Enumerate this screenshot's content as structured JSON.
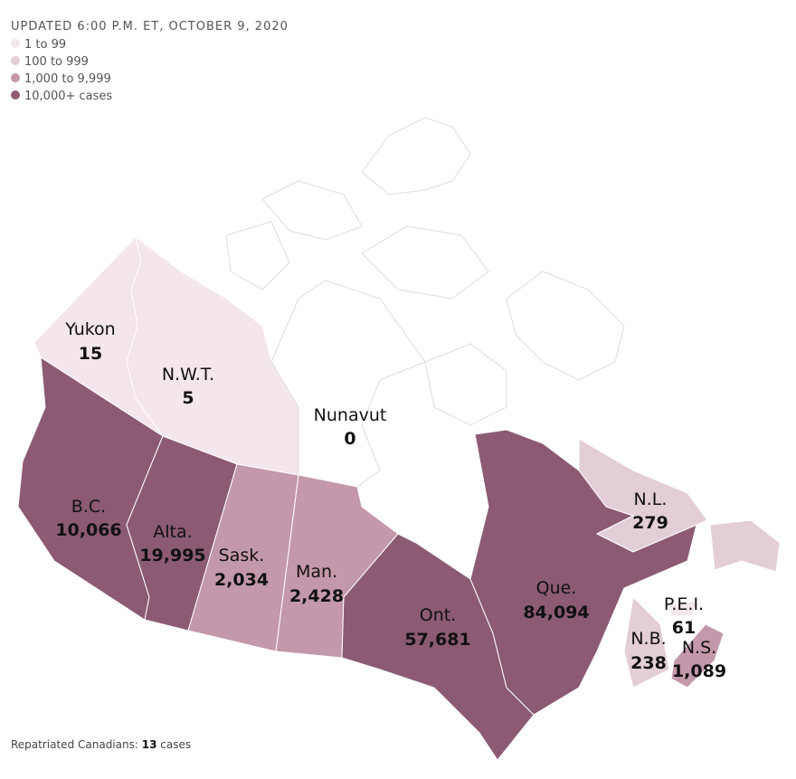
{
  "header": {
    "updated": "UPDATED 6:00 P.M. ET, OCTOBER 9, 2020"
  },
  "legend": [
    {
      "label": "1 to 99",
      "color": "#f3e6ec"
    },
    {
      "label": "100 to 999",
      "color": "#e3cdd6"
    },
    {
      "label": "1,000 to 9,999",
      "color": "#c398aa"
    },
    {
      "label": "10,000+ cases",
      "color": "#8c5b73"
    }
  ],
  "regions": [
    {
      "name": "Yukon",
      "cases": "15",
      "color": "#f3e6ec"
    },
    {
      "name": "N.W.T.",
      "cases": "5",
      "color": "#f3e6ec"
    },
    {
      "name": "Nunavut",
      "cases": "0",
      "color": "#ffffff"
    },
    {
      "name": "B.C.",
      "cases": "10,066",
      "color": "#8c5b73"
    },
    {
      "name": "Alta.",
      "cases": "19,995",
      "color": "#8c5b73"
    },
    {
      "name": "Sask.",
      "cases": "2,034",
      "color": "#c398aa"
    },
    {
      "name": "Man.",
      "cases": "2,428",
      "color": "#c398aa"
    },
    {
      "name": "Ont.",
      "cases": "57,681",
      "color": "#8c5b73"
    },
    {
      "name": "Que.",
      "cases": "84,094",
      "color": "#8c5b73"
    },
    {
      "name": "N.L.",
      "cases": "279",
      "color": "#e3cdd6"
    },
    {
      "name": "P.E.I.",
      "cases": "61",
      "color": "#f3e6ec"
    },
    {
      "name": "N.B.",
      "cases": "238",
      "color": "#e3cdd6"
    },
    {
      "name": "N.S.",
      "cases": "1,089",
      "color": "#c398aa"
    }
  ],
  "footnote": {
    "label": "Repatriated Canadians:",
    "value": "13",
    "unit": "cases"
  }
}
